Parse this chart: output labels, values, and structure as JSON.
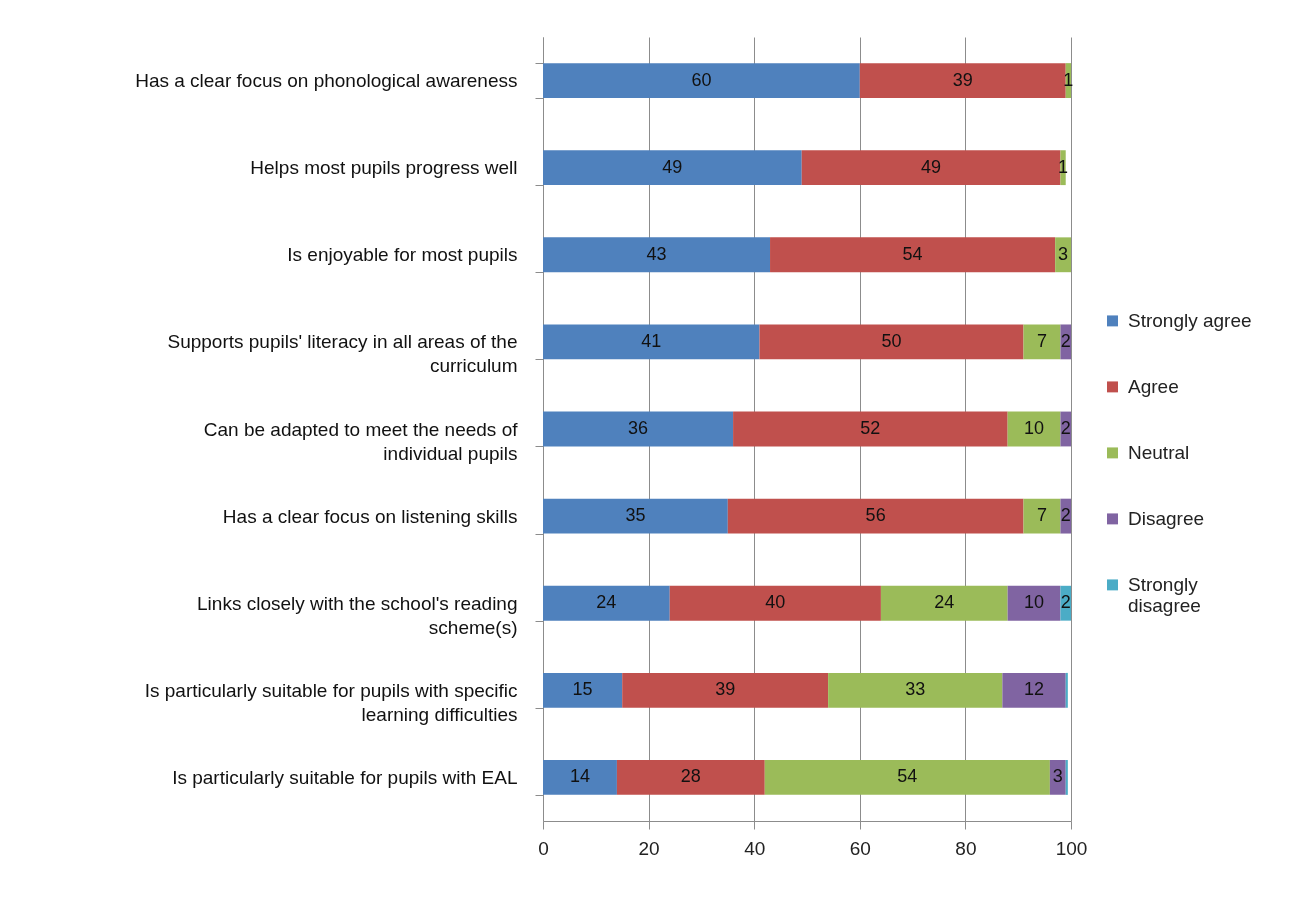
{
  "chart_data": {
    "type": "bar",
    "orientation": "horizontal",
    "stacked": true,
    "categories": [
      "Has a clear focus on phonological awareness",
      "Helps most pupils progress well",
      "Is enjoyable for most pupils",
      "Supports pupils' literacy in all areas of the curriculum",
      "Can be adapted to meet the needs of individual pupils",
      "Has a clear focus on listening skills",
      "Links closely with the school's reading scheme(s)",
      "Is particularly suitable for pupils with specific learning difficulties",
      "Is particularly suitable for pupils with EAL"
    ],
    "series": [
      {
        "name": "Strongly agree",
        "color": "#4f81bd",
        "values": [
          60,
          49,
          43,
          41,
          36,
          35,
          24,
          15,
          14
        ],
        "value_labels": [
          "60",
          "49",
          "43",
          "41",
          "36",
          "35",
          "24",
          "15",
          "14"
        ]
      },
      {
        "name": "Agree",
        "color": "#c0504d",
        "values": [
          39,
          49,
          54,
          50,
          52,
          56,
          40,
          39,
          28
        ],
        "value_labels": [
          "39",
          "49",
          "54",
          "50",
          "52",
          "56",
          "40",
          "39",
          "28"
        ]
      },
      {
        "name": "Neutral",
        "color": "#9bbb59",
        "values": [
          1,
          1,
          3,
          7,
          10,
          7,
          24,
          33,
          54
        ],
        "value_labels": [
          "1",
          "1",
          "3",
          "7",
          "10",
          "7",
          "24",
          "33",
          "54"
        ]
      },
      {
        "name": "Disagree",
        "color": "#8064a2",
        "values": [
          null,
          null,
          null,
          2,
          2,
          2,
          10,
          12,
          3
        ],
        "value_labels": [
          null,
          null,
          null,
          "2",
          "2",
          "2",
          "10",
          "12",
          "3"
        ]
      },
      {
        "name": "Strongly disagree",
        "color": "#4bacc6",
        "values": [
          null,
          null,
          null,
          null,
          null,
          null,
          2,
          0.4,
          0.4
        ],
        "value_labels": [
          null,
          null,
          null,
          null,
          null,
          null,
          "2",
          null,
          null
        ]
      }
    ],
    "xlim": [
      0,
      100
    ],
    "xticks": [
      0,
      20,
      40,
      60,
      80,
      100
    ],
    "grid": "x",
    "legend": "right"
  }
}
